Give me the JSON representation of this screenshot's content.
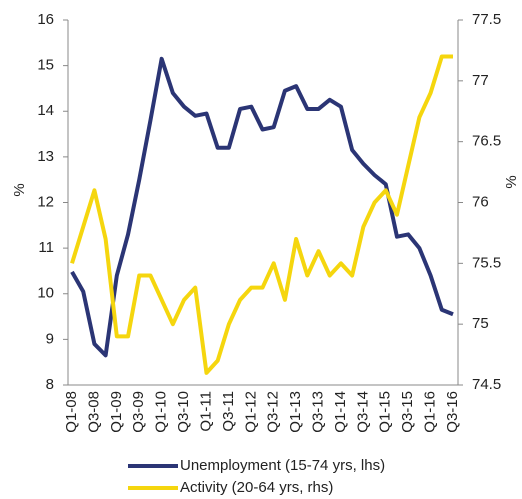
{
  "chart_data": {
    "type": "line",
    "categories": [
      "Q1-08",
      null,
      "Q3-08",
      null,
      "Q1-09",
      null,
      "Q3-09",
      null,
      "Q1-10",
      null,
      "Q3-10",
      null,
      "Q1-11",
      null,
      "Q3-11",
      null,
      "Q1-12",
      null,
      "Q3-12",
      null,
      "Q1-13",
      null,
      "Q3-13",
      null,
      "Q1-14",
      null,
      "Q3-14",
      null,
      "Q1-15",
      null,
      "Q3-15",
      null,
      "Q1-16",
      null,
      "Q3-16"
    ],
    "series": [
      {
        "name": "Unemployment (15-74 yrs, lhs)",
        "color": "#2b3575",
        "axis": "y",
        "values": [
          10.48,
          10.05,
          8.9,
          8.65,
          10.4,
          11.3,
          12.5,
          13.8,
          15.15,
          14.4,
          14.1,
          13.9,
          13.95,
          13.2,
          13.2,
          14.05,
          14.1,
          13.6,
          13.65,
          14.45,
          14.55,
          14.05,
          14.05,
          14.25,
          14.1,
          13.15,
          12.85,
          12.6,
          12.4,
          11.25,
          11.3,
          11.0,
          10.4,
          9.65,
          9.55
        ]
      },
      {
        "name": "Activity (20-64 yrs, rhs)",
        "color": "#f5d60e",
        "axis": "y2",
        "values": [
          75.5,
          75.8,
          76.1,
          75.7,
          74.9,
          74.9,
          75.4,
          75.4,
          75.2,
          75.0,
          75.2,
          75.3,
          74.6,
          74.7,
          75.0,
          75.2,
          75.3,
          75.3,
          75.5,
          75.2,
          75.7,
          75.4,
          75.6,
          75.4,
          75.5,
          75.4,
          75.8,
          76.0,
          76.1,
          75.9,
          76.3,
          76.7,
          76.9,
          77.2,
          77.2
        ]
      }
    ],
    "ylabel": "%",
    "y2label": "%",
    "ylim": [
      8,
      16
    ],
    "yticks": [
      8,
      9,
      10,
      11,
      12,
      13,
      14,
      15,
      16
    ],
    "y2lim": [
      74.5,
      77.5
    ],
    "y2ticks": [
      74.5,
      75,
      75.5,
      76,
      76.5,
      77,
      77.5
    ],
    "grid": false
  }
}
